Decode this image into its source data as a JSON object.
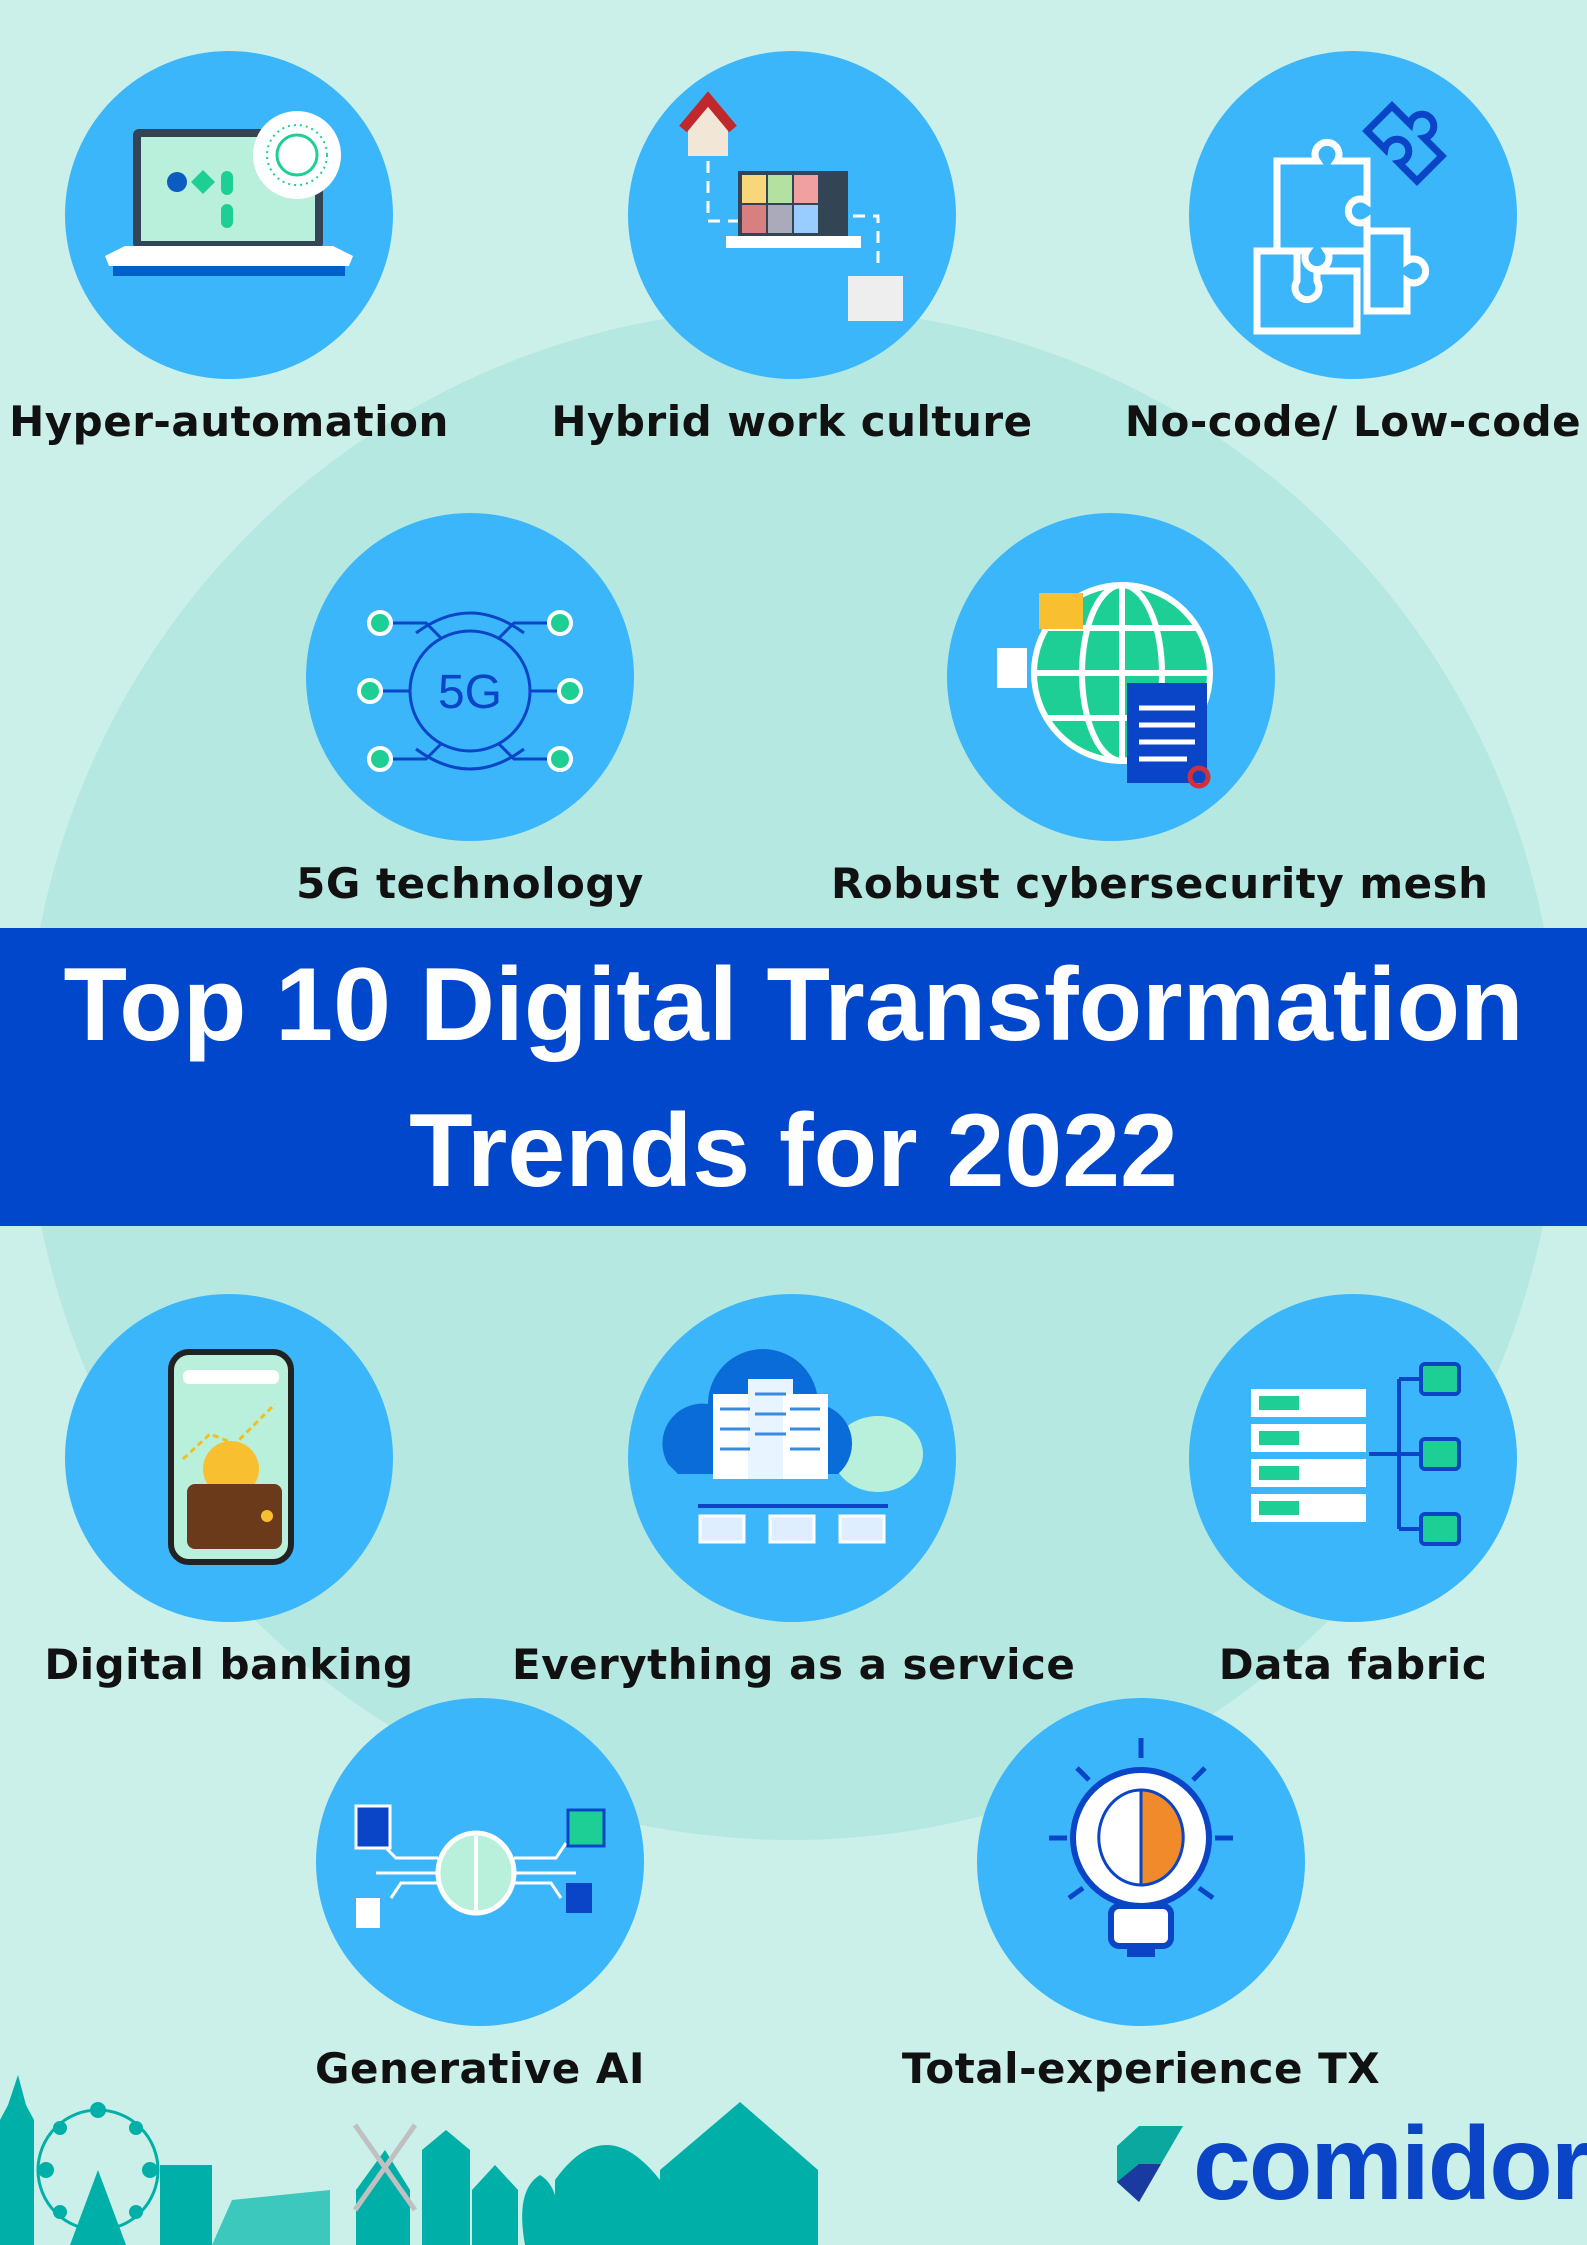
{
  "title": {
    "line1": "Top 10 Digital Transformation",
    "line2": "Trends for 2022"
  },
  "trends": [
    {
      "label": "Hyper-automation",
      "icon": "laptop-gear-icon"
    },
    {
      "label": "Hybrid work culture",
      "icon": "video-call-laptop-icon"
    },
    {
      "label": "No-code/ Low-code",
      "icon": "puzzle-icon"
    },
    {
      "label": "5G technology",
      "icon": "5g-network-icon"
    },
    {
      "label": "Robust cybersecurity mesh",
      "icon": "globe-lock-icon"
    },
    {
      "label": "Digital banking",
      "icon": "phone-wallet-icon"
    },
    {
      "label": "Everything as a service",
      "icon": "cloud-server-icon"
    },
    {
      "label": "Data fabric",
      "icon": "data-servers-icon"
    },
    {
      "label": "Generative AI",
      "icon": "brain-circuit-icon"
    },
    {
      "label": "Total-experience TX",
      "icon": "lightbulb-brain-icon"
    }
  ],
  "brand": {
    "name": "comidor"
  },
  "colors": {
    "background": "#cbf0e9",
    "circle": "#3bb6fb",
    "banner": "#0047cc",
    "skyline": "#00b0a8",
    "brand": "#0a45c8"
  }
}
